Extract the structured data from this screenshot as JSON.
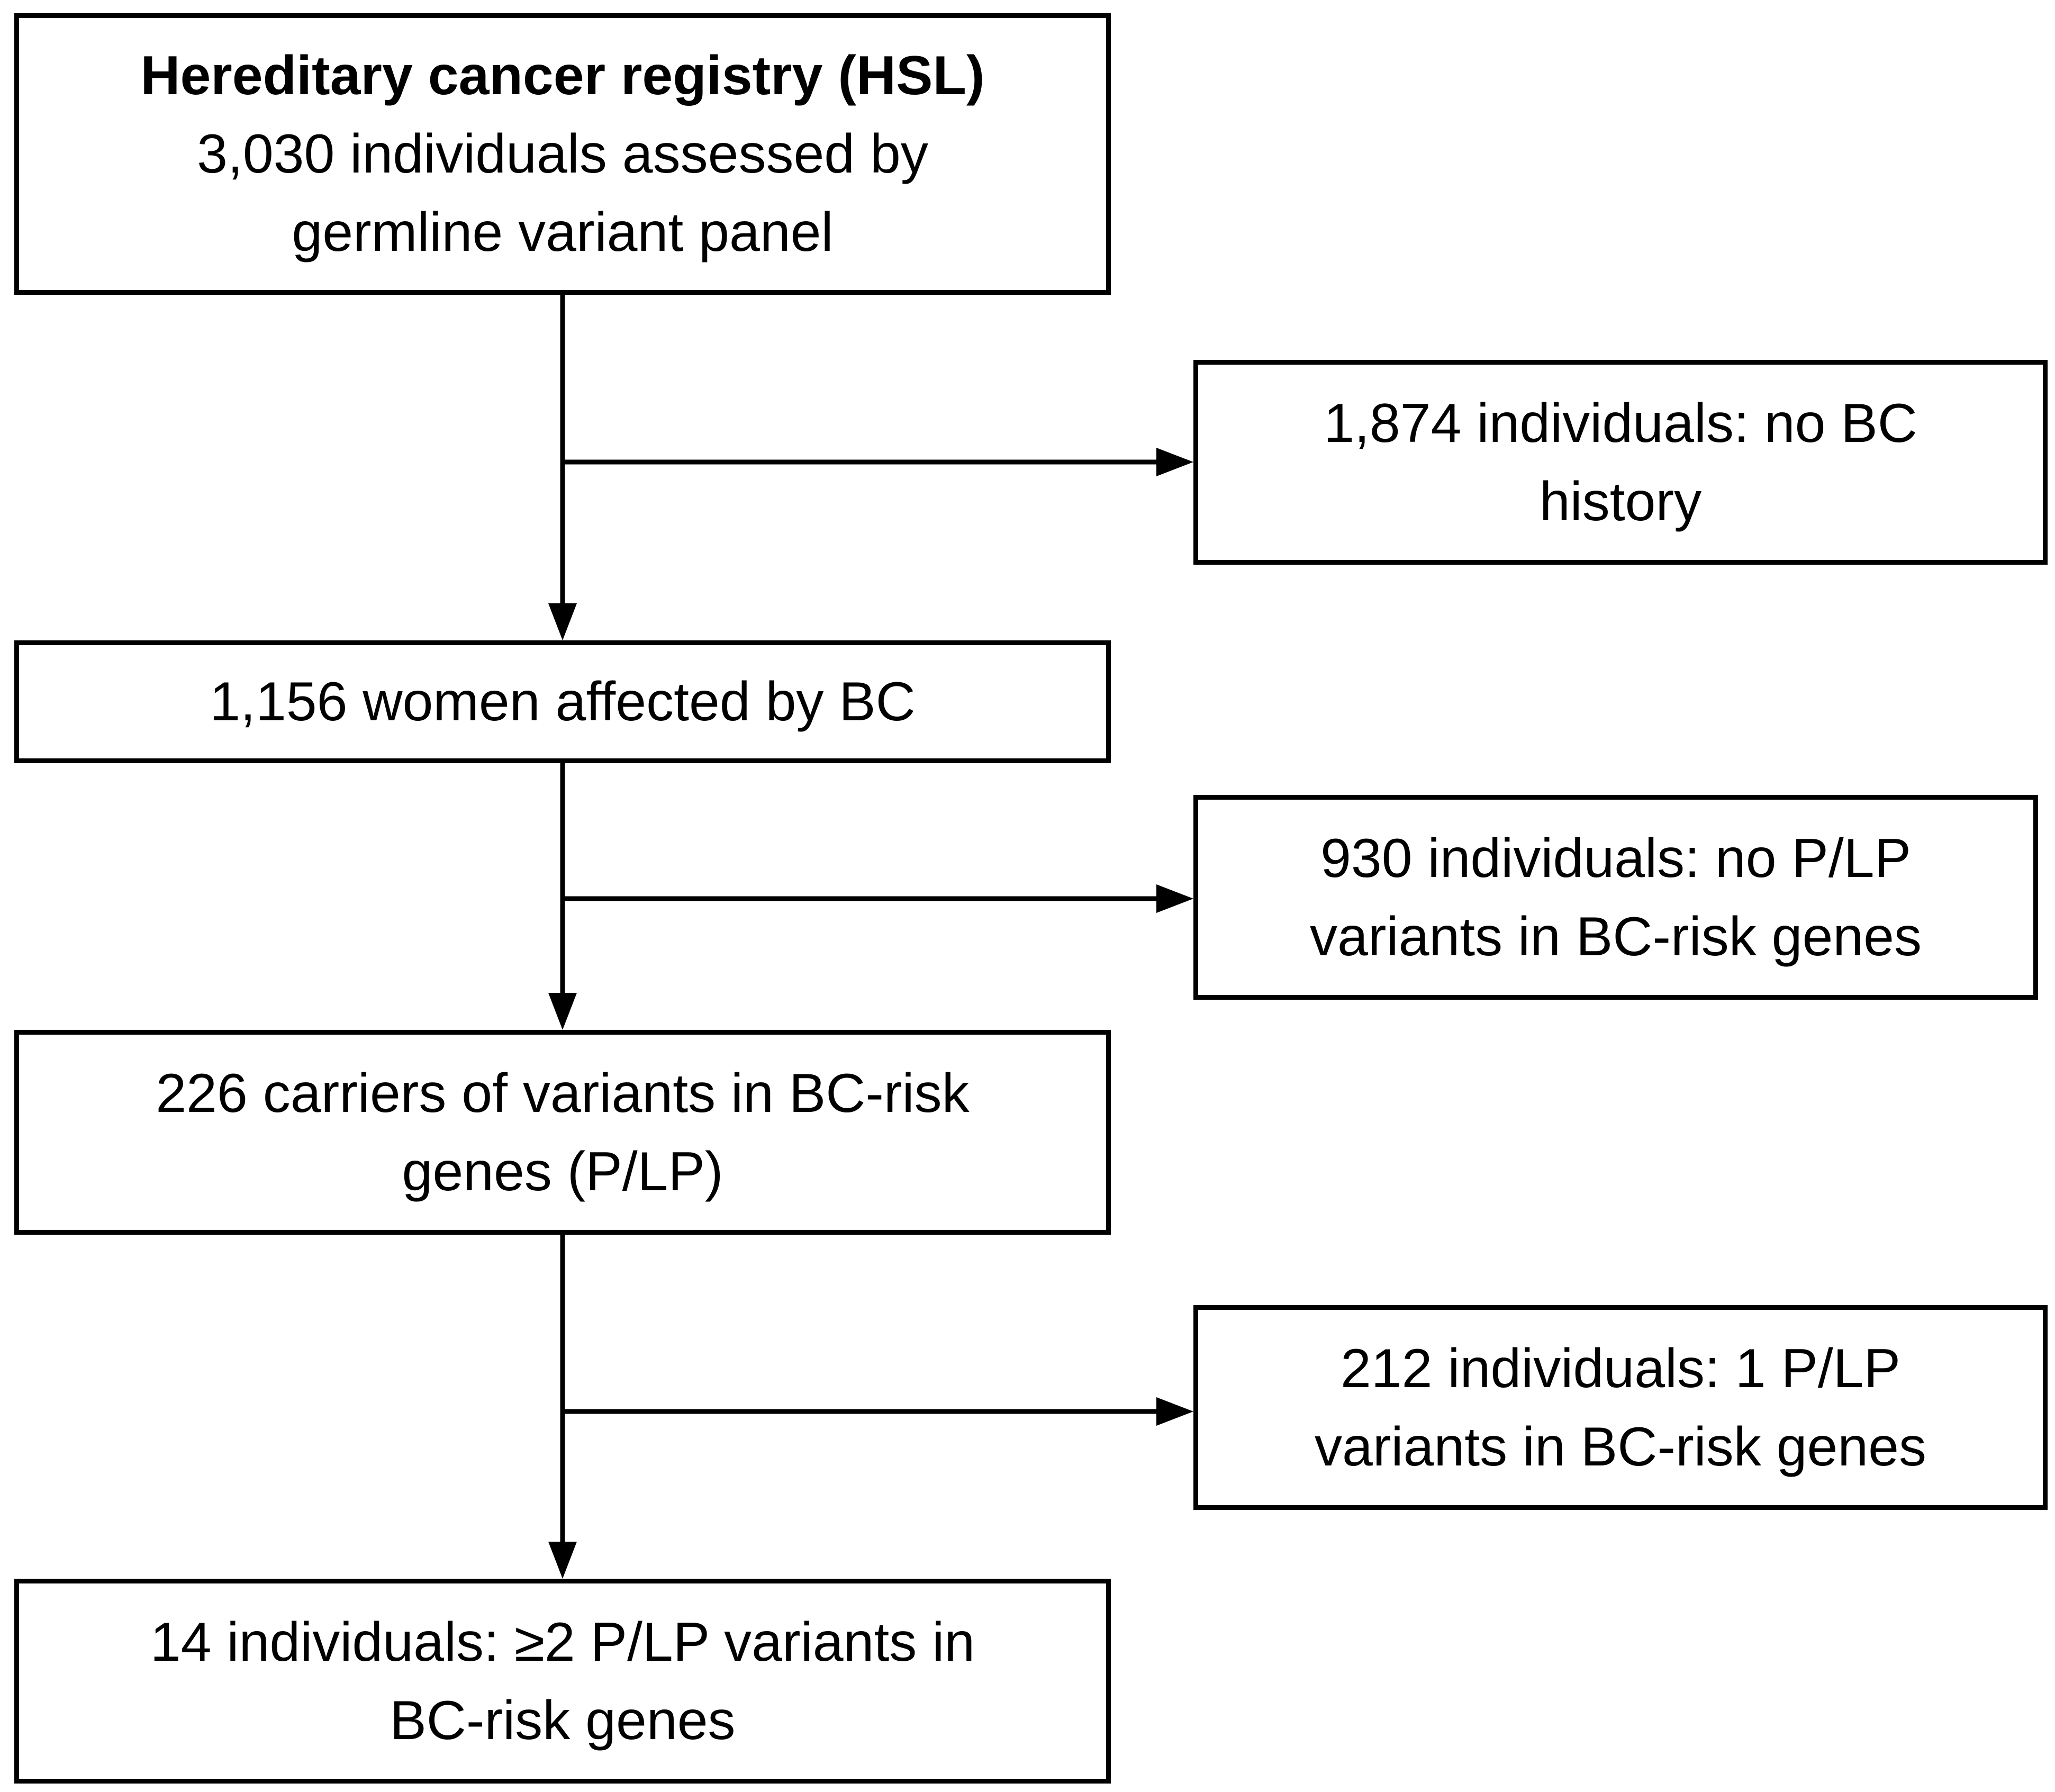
{
  "diagram": {
    "line_color": "#000000",
    "box_border_color": "#000000",
    "background": "#ffffff",
    "nodes": {
      "registry": {
        "title": "Hereditary cancer registry (HSL)",
        "line1": "3,030 individuals assessed by",
        "line2": "germline variant panel"
      },
      "no_bc": {
        "line1": "1,874 individuals: no BC",
        "line2": "history"
      },
      "women": {
        "line1": "1,156 women affected by BC"
      },
      "no_plp": {
        "line1": "930 individuals: no P/LP",
        "line2": "variants in BC-risk genes"
      },
      "carriers": {
        "line1": "226 carriers of variants in BC-risk",
        "line2": "genes (P/LP)"
      },
      "one_plp": {
        "line1": "212 individuals: 1 P/LP",
        "line2": "variants in BC-risk genes"
      },
      "two_plp": {
        "line1": "14 individuals: ≥2 P/LP variants in",
        "line2": "BC-risk genes"
      }
    }
  }
}
